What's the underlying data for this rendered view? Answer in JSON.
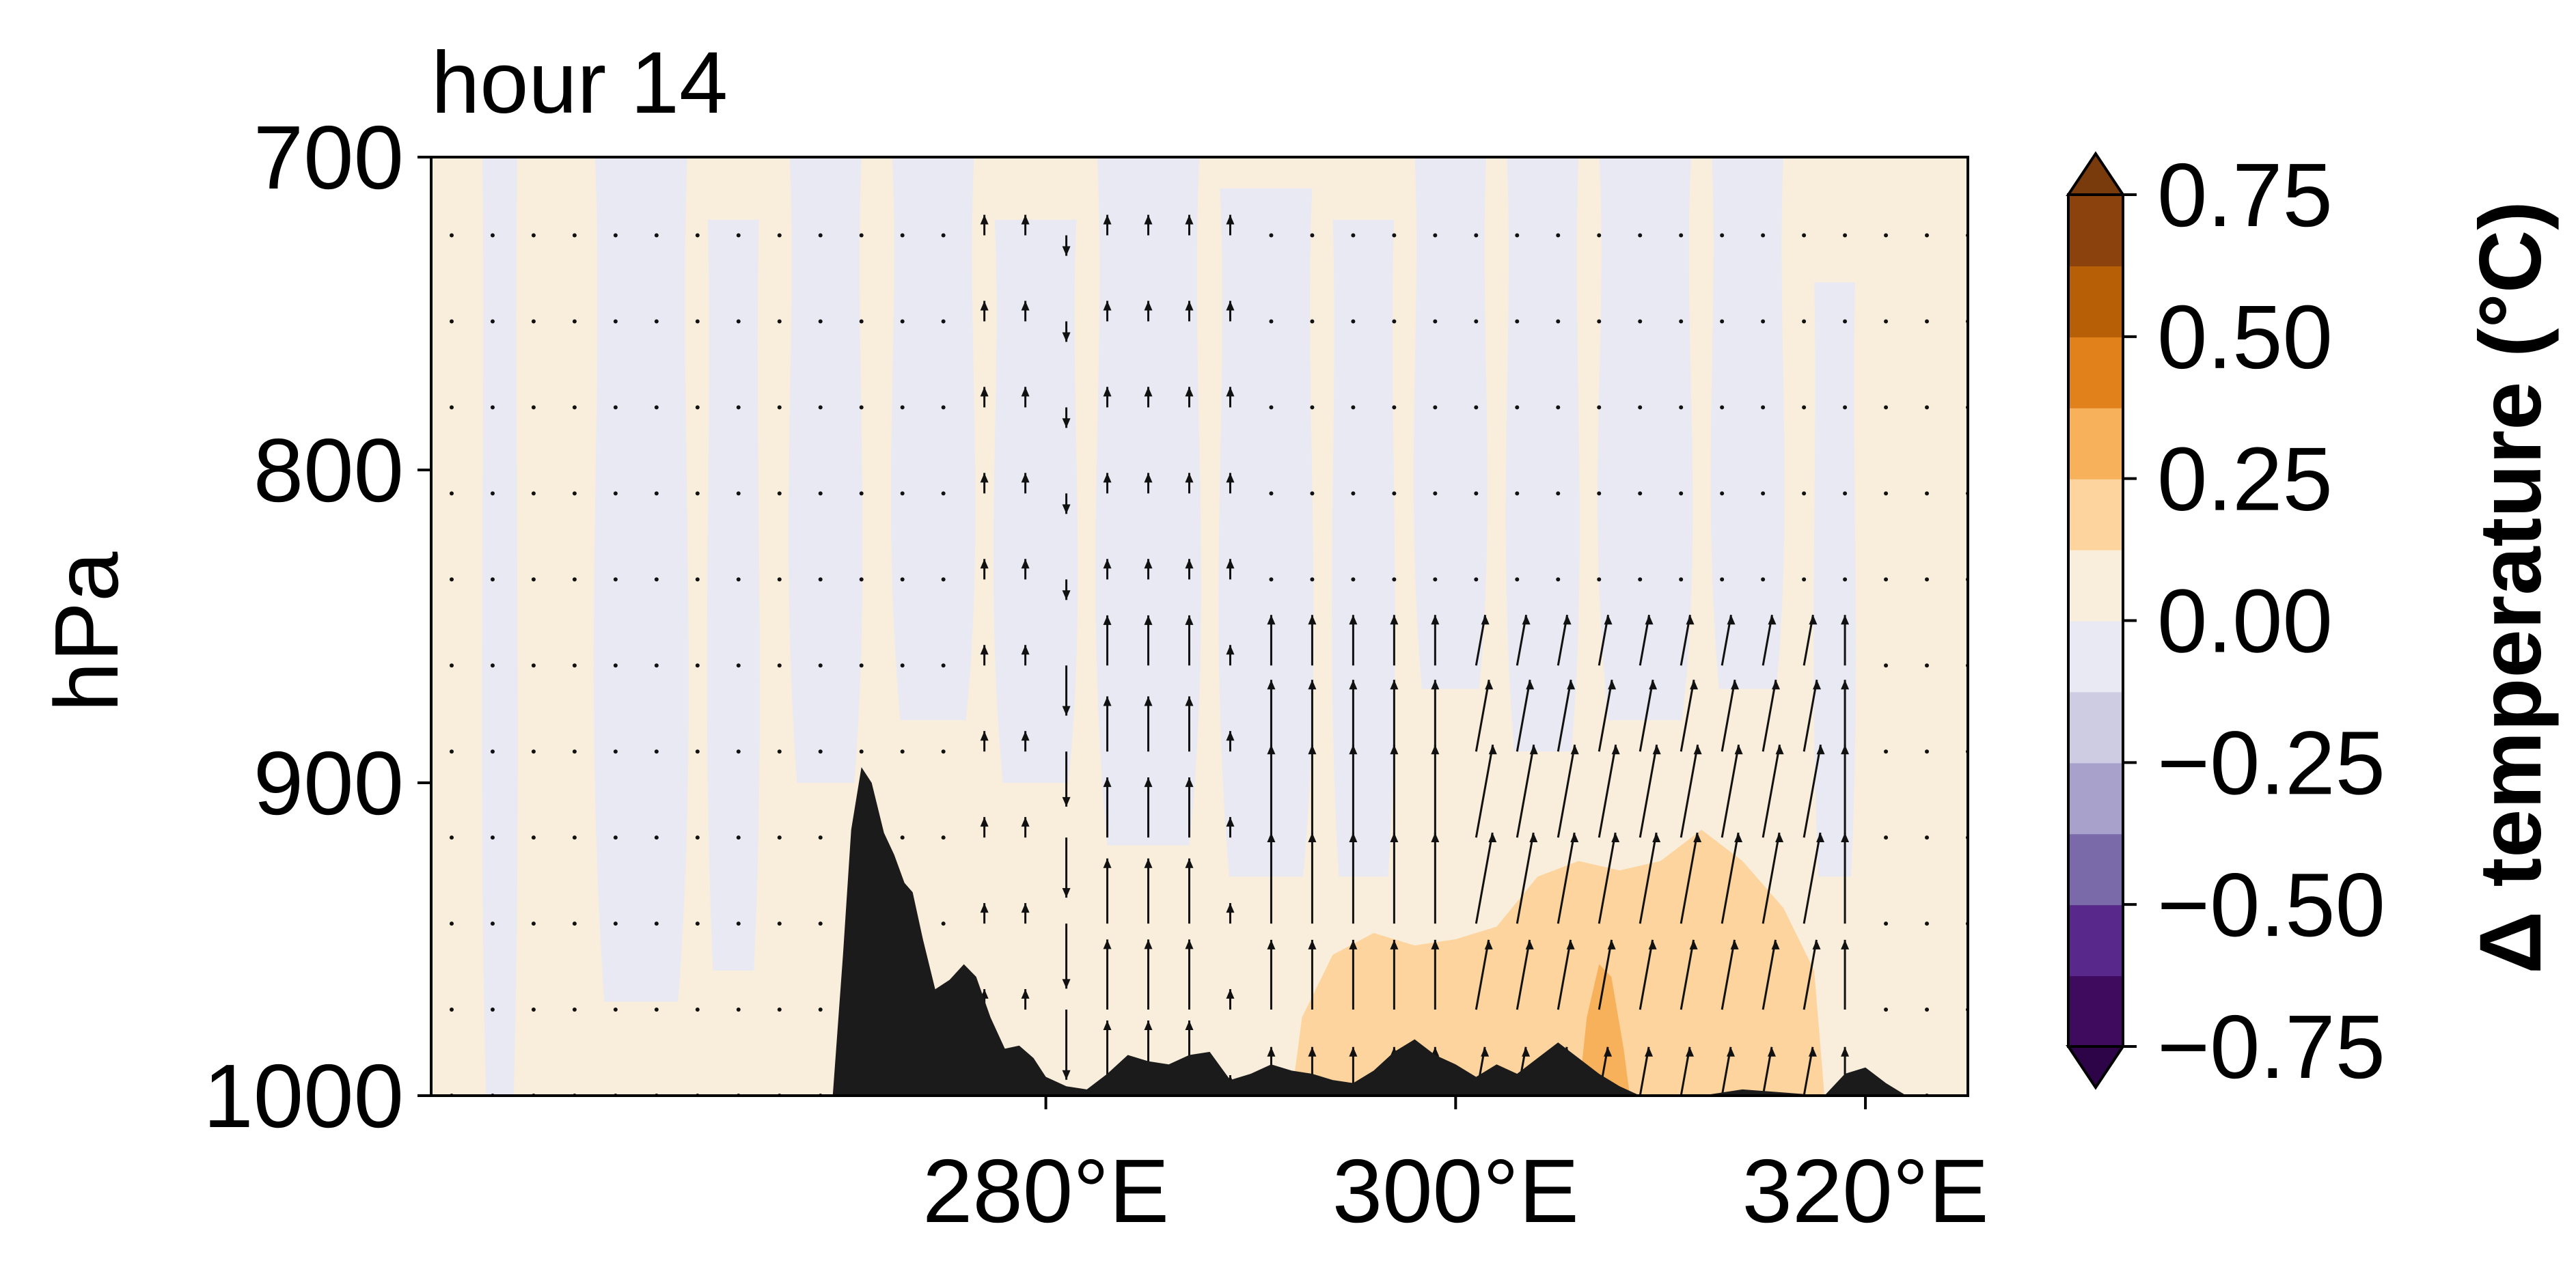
{
  "chart_data": {
    "type": "heatmap",
    "subtype": "filled contour pressure-longitude cross-section with wind vectors and terrain",
    "title": "hour 14",
    "xlabel": "",
    "ylabel": "hPa",
    "xlim": [
      250,
      325
    ],
    "ylim": [
      1000,
      700
    ],
    "y_axis_inverted": true,
    "xticks": [
      280,
      300,
      320
    ],
    "xtick_labels": [
      "280°E",
      "300°E",
      "320°E"
    ],
    "yticks": [
      700,
      800,
      900,
      1000
    ],
    "ytick_labels": [
      "700",
      "800",
      "900",
      "1000"
    ],
    "colorbar": {
      "label": "Δ temperature (°C)",
      "levels": [
        -0.75,
        -0.625,
        -0.5,
        -0.375,
        -0.25,
        -0.125,
        0,
        0.125,
        0.25,
        0.375,
        0.5,
        0.625,
        0.75
      ],
      "tick_values": [
        0.75,
        0.5,
        0.25,
        0.0,
        -0.25,
        -0.5,
        -0.75
      ],
      "tick_labels": [
        "0.75",
        "0.50",
        "0.25",
        "0.00",
        "−0.25",
        "−0.50",
        "−0.75"
      ],
      "colors": [
        "#3f0b5e",
        "#58298a",
        "#7b6aaa",
        "#a7a1cb",
        "#cdcce3",
        "#e9e9f3",
        "#f9eedb",
        "#fdd49e",
        "#f8b15b",
        "#e0811c",
        "#b65f07",
        "#8b420c"
      ],
      "under_color": "#2d0447",
      "over_color": "#7a3b0c",
      "extend": "both"
    },
    "terrain_color": "#1b1b1b",
    "terrain": {
      "x": [
        269.8,
        270.5,
        271.2,
        272.0,
        272.8,
        273.5,
        274.1,
        274.8,
        275.4,
        276.1,
        276.9,
        277.6,
        278.4,
        279.3,
        280.0,
        281.0,
        282.0,
        283.0,
        284.0,
        285.0,
        286.0,
        287.0,
        288.0,
        289.0,
        290.0,
        291.0,
        292.0,
        293.0,
        294.0,
        295.0,
        296.0,
        297.0,
        298.0,
        299.0,
        300.0,
        301.0,
        302.0,
        303.0,
        304.0,
        305.0,
        306.0,
        307.0,
        308.0,
        309.0,
        310.0,
        312.0,
        314.0,
        316.0,
        318.0,
        319.0,
        320.0,
        321.0,
        322.0
      ],
      "p": [
        1000,
        935,
        905,
        910,
        925,
        932,
        960,
        965,
        963,
        962,
        988,
        988,
        991,
        992,
        996,
        997,
        998,
        993,
        987,
        989,
        990,
        987,
        986,
        995,
        993,
        990,
        992,
        993,
        995,
        996,
        992,
        986,
        980,
        987,
        990,
        994,
        990,
        993,
        988,
        983,
        988,
        993,
        997,
        1000,
        1000,
        1000,
        998,
        999,
        1000,
        993,
        991,
        996,
        1000
      ]
    },
    "terrain_fill": {
      "x": [
        269.6,
        270.1,
        270.5,
        271.0,
        271.5,
        272.1,
        272.6,
        273.1,
        273.5,
        274.0,
        274.6,
        275.3,
        276.0,
        276.6,
        277.3,
        278.0,
        278.7,
        279.4,
        280.0,
        281.0,
        282.0,
        283.0,
        284.0,
        285.0,
        286.0,
        287.0,
        288.0,
        289.0,
        290.0,
        291.0,
        292.0,
        293.0,
        294.0,
        295.0,
        296.0,
        297.0,
        298.0,
        299.0,
        300.0,
        301.0,
        302.0,
        303.0,
        304.0,
        305.0,
        306.0,
        307.0,
        308.0,
        309.0,
        310.0,
        312.0,
        314.0,
        316.0,
        318.0,
        319.0,
        320.0,
        321.0,
        322.0
      ],
      "p": [
        1000,
        955,
        915,
        895,
        900,
        916,
        923,
        932,
        935,
        950,
        966,
        963,
        958,
        962,
        975,
        985,
        984,
        988,
        994,
        997,
        998,
        993,
        987,
        989,
        990,
        987,
        986,
        995,
        993,
        990,
        992,
        993,
        995,
        996,
        992,
        986,
        982,
        987,
        990,
        994,
        990,
        993,
        988,
        983,
        988,
        993,
        997,
        1000,
        1000,
        1000,
        998,
        999,
        1000,
        993,
        991,
        996,
        1000
      ]
    },
    "anomaly_regions": [
      {
        "level_range": "0 to 0.125",
        "description": "broad light cream background across domain"
      },
      {
        "level_range": "-0.125 to 0",
        "description": "lavender bands centered mid-domain near 270-312°E, 700-900 hPa"
      },
      {
        "level_range": "0.125 to 0.25",
        "x_range": [
          292,
          318
        ],
        "p_range": [
          925,
          1000
        ]
      },
      {
        "level_range": "0.25 to 0.375",
        "x_range": [
          306,
          308
        ],
        "p_range": [
          955,
          1000
        ]
      }
    ],
    "vector_field_description": "wind vectors on a regular grid; strongest upward arrows between 290°E and 318°E below ~860 hPa and above the steep terrain near 280-286°E"
  }
}
